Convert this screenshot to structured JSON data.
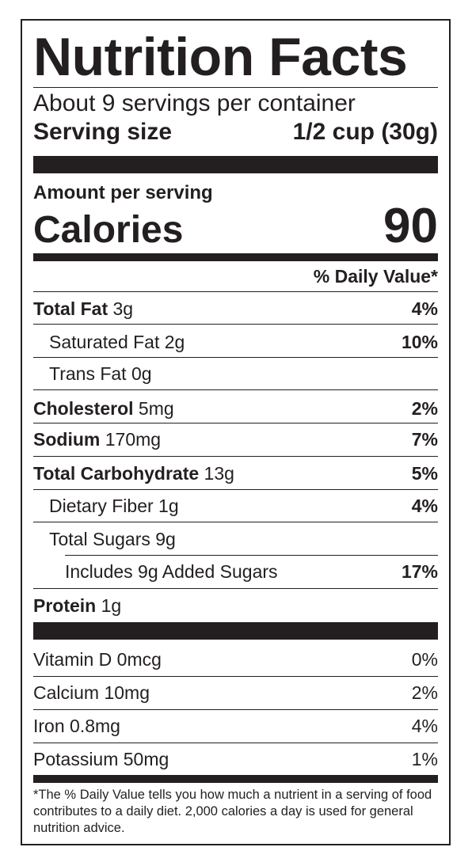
{
  "title": "Nutrition Facts",
  "servings_per_container": "About 9 servings per container",
  "serving_size": {
    "label": "Serving size",
    "value": "1/2 cup (30g)"
  },
  "amount_per_serving": "Amount per serving",
  "calories": {
    "label": "Calories",
    "value": "90"
  },
  "daily_value_header": "% Daily Value*",
  "nutrients": [
    {
      "name": "Total Fat",
      "amount": "3g",
      "dv": "4%"
    },
    {
      "name": "Saturated Fat",
      "amount": "2g",
      "dv": "10%"
    },
    {
      "name": "Trans Fat",
      "amount": "0g",
      "dv": ""
    },
    {
      "name": "Cholesterol",
      "amount": "5mg",
      "dv": "2%"
    },
    {
      "name": "Sodium",
      "amount": "170mg",
      "dv": "7%"
    },
    {
      "name": "Total Carbohydrate",
      "amount": "13g",
      "dv": "5%"
    },
    {
      "name": "Dietary Fiber",
      "amount": "1g",
      "dv": "4%"
    },
    {
      "name": "Total Sugars",
      "amount": "9g",
      "dv": ""
    },
    {
      "name": "Includes 9g Added Sugars",
      "amount": "",
      "dv": "17%"
    },
    {
      "name": "Protein",
      "amount": "1g",
      "dv": ""
    }
  ],
  "vitamins": [
    {
      "name": "Vitamin D",
      "amount": "0mcg",
      "dv": "0%"
    },
    {
      "name": "Calcium",
      "amount": "10mg",
      "dv": "2%"
    },
    {
      "name": "Iron",
      "amount": "0.8mg",
      "dv": "4%"
    },
    {
      "name": "Potassium",
      "amount": "50mg",
      "dv": "1%"
    }
  ],
  "footnote": "*The % Daily Value tells you how much a nutrient in a serving of food contributes to a daily diet. 2,000 calories a day is used for general nutrition advice.",
  "colors": {
    "ink": "#231f20",
    "background": "#ffffff"
  }
}
